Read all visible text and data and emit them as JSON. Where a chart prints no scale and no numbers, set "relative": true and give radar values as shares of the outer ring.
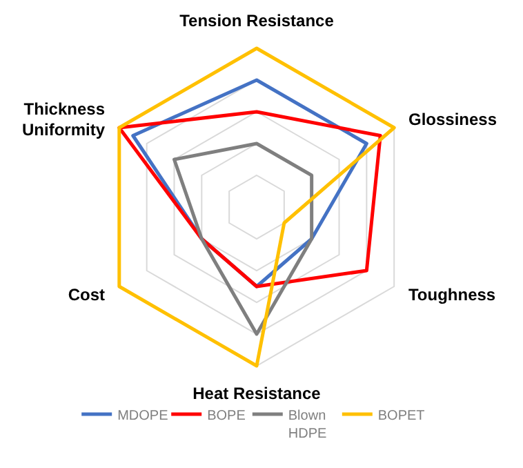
{
  "chart_data": {
    "type": "radar",
    "relative": true,
    "categories": [
      "Tension Resistance",
      "Glossiness",
      "Toughness",
      "Heat Resistance",
      "Cost",
      "Thickness Uniformity"
    ],
    "grid": true,
    "legend": "bottom",
    "series": [
      {
        "name": "MDOPE",
        "color": "#4472c4",
        "values": [
          0.8,
          0.8,
          0.4,
          0.5,
          0.4,
          0.9
        ]
      },
      {
        "name": "BOPE",
        "color": "#ff0000",
        "values": [
          0.6,
          0.9,
          0.8,
          0.5,
          0.4,
          1.0
        ]
      },
      {
        "name": "Blown HDPE",
        "color": "#7f7f7f",
        "values": [
          0.4,
          0.4,
          0.4,
          0.8,
          0.4,
          0.6
        ]
      },
      {
        "name": "BOPET",
        "color": "#ffc000",
        "values": [
          1.0,
          1.0,
          0.2,
          1.0,
          1.0,
          1.0
        ]
      }
    ]
  }
}
